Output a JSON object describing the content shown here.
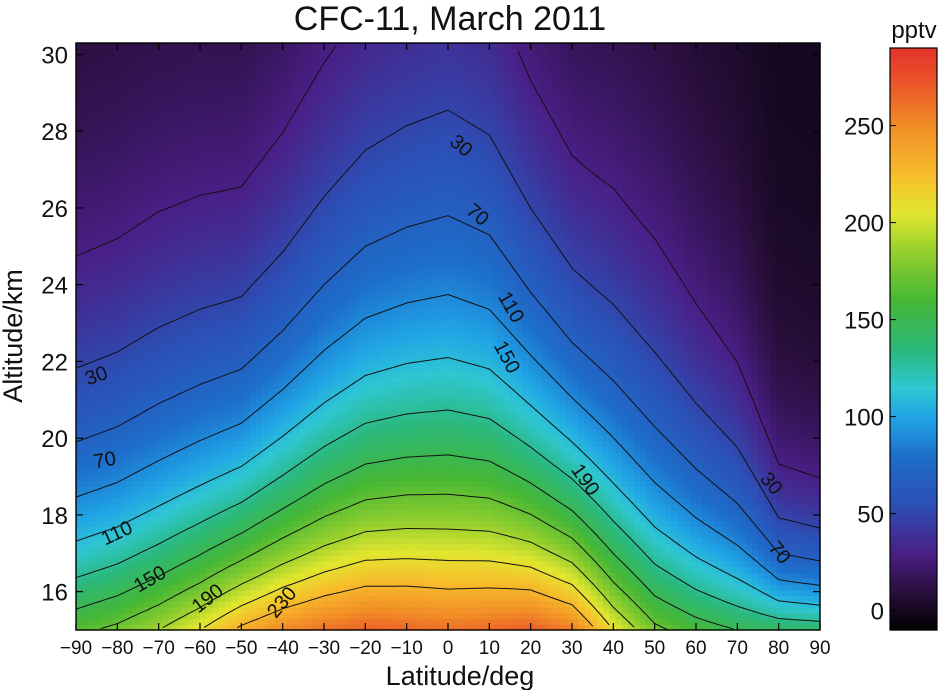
{
  "chart_data": {
    "type": "heatmap",
    "title": "CFC-11, March 2011",
    "xlabel": "Latitude/deg",
    "ylabel": "Altitude/km",
    "colorbar_label": "pptv",
    "xlim": [
      -90,
      90
    ],
    "ylim": [
      15,
      30.3
    ],
    "x_ticks": [
      -90,
      -80,
      -70,
      -60,
      -50,
      -40,
      -30,
      -20,
      -10,
      0,
      10,
      20,
      30,
      40,
      50,
      60,
      70,
      80,
      90
    ],
    "x_tick_labels": [
      "−90",
      "−80",
      "−70",
      "−60",
      "−50",
      "−40",
      "−30",
      "−20",
      "−10",
      "0",
      "10",
      "20",
      "30",
      "40",
      "50",
      "60",
      "70",
      "80",
      "90"
    ],
    "y_ticks": [
      16,
      18,
      20,
      22,
      24,
      26,
      28,
      30
    ],
    "y_tick_labels": [
      "16",
      "18",
      "20",
      "22",
      "24",
      "26",
      "28",
      "30"
    ],
    "colorbar_range": [
      -10,
      290
    ],
    "colorbar_ticks": [
      0,
      50,
      100,
      150,
      200,
      250
    ],
    "colorbar_tick_labels": [
      "0",
      "50",
      "100",
      "150",
      "200",
      "250"
    ],
    "colormap": [
      {
        "value": -10,
        "color": "#000000"
      },
      {
        "value": 10,
        "color": "#2a0f3e"
      },
      {
        "value": 30,
        "color": "#4a1f86"
      },
      {
        "value": 55,
        "color": "#2c4fb5"
      },
      {
        "value": 80,
        "color": "#1d6fcb"
      },
      {
        "value": 100,
        "color": "#20a4e6"
      },
      {
        "value": 115,
        "color": "#2ec7d2"
      },
      {
        "value": 135,
        "color": "#2bb87a"
      },
      {
        "value": 160,
        "color": "#46b735"
      },
      {
        "value": 185,
        "color": "#93cf2e"
      },
      {
        "value": 205,
        "color": "#e2e62f"
      },
      {
        "value": 225,
        "color": "#f7bd2c"
      },
      {
        "value": 250,
        "color": "#f18d26"
      },
      {
        "value": 275,
        "color": "#ea4f2a"
      },
      {
        "value": 290,
        "color": "#e3342b"
      }
    ],
    "contour_levels": [
      30,
      50,
      70,
      90,
      110,
      130,
      150,
      170,
      190,
      210,
      230
    ],
    "contour_labels": [
      {
        "text": "30",
        "lat": 3,
        "alt": 27.6,
        "angle": 40
      },
      {
        "text": "70",
        "lat": 7,
        "alt": 25.8,
        "angle": 40
      },
      {
        "text": "110",
        "lat": 15,
        "alt": 23.4,
        "angle": 60
      },
      {
        "text": "150",
        "lat": 14,
        "alt": 22.1,
        "angle": 62
      },
      {
        "text": "30",
        "lat": -85,
        "alt": 21.6,
        "angle": -20
      },
      {
        "text": "190",
        "lat": 33,
        "alt": 18.9,
        "angle": 55
      },
      {
        "text": "30",
        "lat": 78,
        "alt": 18.8,
        "angle": 50
      },
      {
        "text": "70",
        "lat": -83,
        "alt": 19.4,
        "angle": -10
      },
      {
        "text": "70",
        "lat": 80,
        "alt": 17.0,
        "angle": 50
      },
      {
        "text": "110",
        "lat": -80,
        "alt": 17.5,
        "angle": -25
      },
      {
        "text": "150",
        "lat": -72,
        "alt": 16.3,
        "angle": -30
      },
      {
        "text": "190",
        "lat": -58,
        "alt": 15.8,
        "angle": -38
      },
      {
        "text": "230",
        "lat": -40,
        "alt": 15.7,
        "angle": -50
      }
    ],
    "profiles": {
      "lat": [
        -90,
        -80,
        -70,
        -60,
        -50,
        -40,
        -30,
        -20,
        -10,
        0,
        10,
        20,
        30,
        40,
        50,
        60,
        70,
        80,
        90
      ],
      "peak_pptv": [
        165,
        175,
        190,
        210,
        235,
        252,
        262,
        268,
        266,
        262,
        265,
        270,
        258,
        210,
        175,
        160,
        150,
        145,
        142
      ],
      "altitude_of_70_pptv_km": [
        19.9,
        20.3,
        20.9,
        21.4,
        21.8,
        22.8,
        24.0,
        25.0,
        25.5,
        25.8,
        25.3,
        23.8,
        22.5,
        21.5,
        20.3,
        19.2,
        18.3,
        17.0,
        16.8
      ]
    }
  }
}
